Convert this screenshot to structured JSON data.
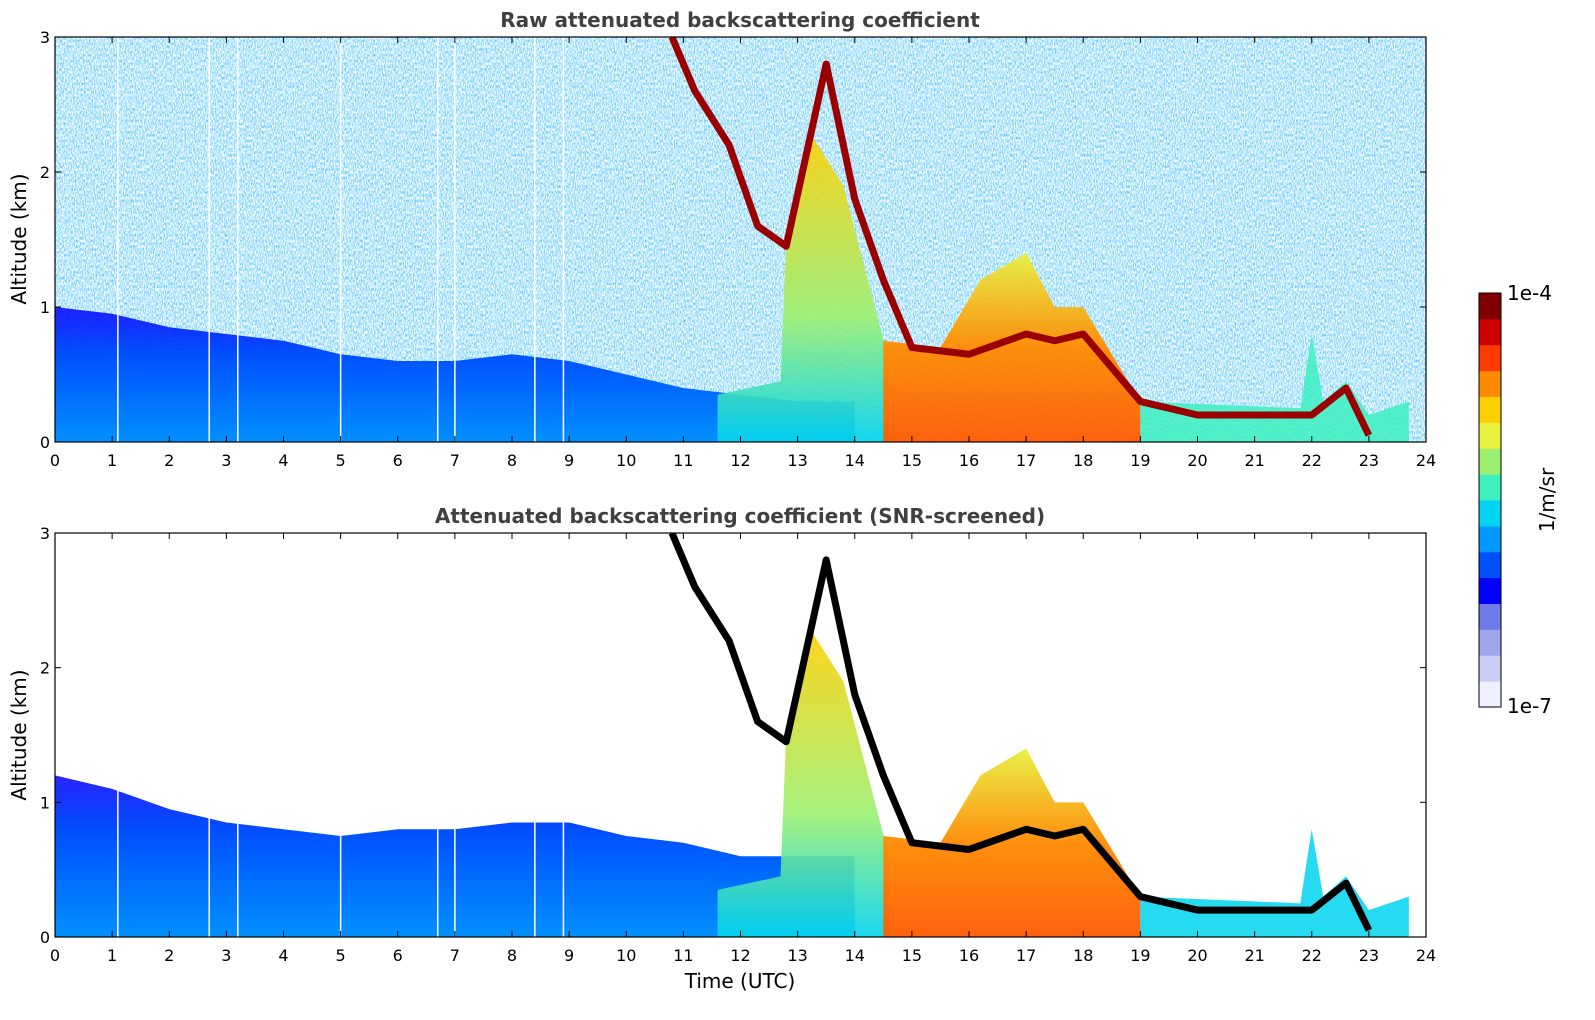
{
  "chart_data": [
    {
      "type": "heatmap",
      "title": "Raw attenuated backscattering coefficient",
      "xlabel": "",
      "ylabel": "Altitude (km)",
      "xlim": [
        0,
        24
      ],
      "ylim": [
        0,
        3
      ],
      "xticks": [
        "0",
        "1",
        "2",
        "3",
        "4",
        "5",
        "6",
        "7",
        "8",
        "9",
        "10",
        "11",
        "12",
        "13",
        "14",
        "15",
        "16",
        "17",
        "18",
        "19",
        "20",
        "21",
        "22",
        "23",
        "24"
      ],
      "yticks": [
        "0",
        "1",
        "2",
        "3"
      ],
      "screened": false,
      "features": {
        "boundary_layer_top_km": [
          [
            0,
            1.0
          ],
          [
            1,
            0.95
          ],
          [
            2,
            0.85
          ],
          [
            3,
            0.8
          ],
          [
            4,
            0.75
          ],
          [
            5,
            0.65
          ],
          [
            6,
            0.6
          ],
          [
            7,
            0.6
          ],
          [
            8,
            0.65
          ],
          [
            9,
            0.6
          ],
          [
            10,
            0.5
          ],
          [
            11,
            0.4
          ],
          [
            12,
            0.35
          ],
          [
            13,
            0.3
          ],
          [
            14,
            0.3
          ]
        ],
        "cloud_layer_km": [
          [
            10.8,
            3.0
          ],
          [
            11.2,
            2.6
          ],
          [
            11.8,
            2.2
          ],
          [
            12.3,
            1.6
          ],
          [
            12.8,
            1.45
          ],
          [
            13.5,
            2.8
          ],
          [
            14.0,
            1.8
          ],
          [
            14.5,
            1.2
          ],
          [
            15.0,
            0.7
          ],
          [
            16.0,
            0.65
          ],
          [
            17.0,
            0.8
          ],
          [
            17.5,
            0.75
          ],
          [
            18.0,
            0.8
          ],
          [
            19.0,
            0.3
          ],
          [
            20.0,
            0.2
          ],
          [
            21.0,
            0.2
          ],
          [
            22.0,
            0.2
          ],
          [
            22.6,
            0.4
          ],
          [
            23.0,
            0.05
          ]
        ]
      },
      "missing_profiles_utc": [
        1.1,
        2.7,
        3.2,
        5.0,
        6.7,
        7.0,
        8.4,
        8.9
      ]
    },
    {
      "type": "heatmap",
      "title": "Attenuated backscattering coefficient (SNR-screened)",
      "xlabel": "Time (UTC)",
      "ylabel": "Altitude (km)",
      "xlim": [
        0,
        24
      ],
      "ylim": [
        0,
        3
      ],
      "xticks": [
        "0",
        "1",
        "2",
        "3",
        "4",
        "5",
        "6",
        "7",
        "8",
        "9",
        "10",
        "11",
        "12",
        "13",
        "14",
        "15",
        "16",
        "17",
        "18",
        "19",
        "20",
        "21",
        "22",
        "23",
        "24"
      ],
      "yticks": [
        "0",
        "1",
        "2",
        "3"
      ],
      "screened": true,
      "features": {
        "boundary_layer_top_km": [
          [
            0,
            1.2
          ],
          [
            1,
            1.1
          ],
          [
            2,
            0.95
          ],
          [
            3,
            0.85
          ],
          [
            4,
            0.8
          ],
          [
            5,
            0.75
          ],
          [
            6,
            0.8
          ],
          [
            7,
            0.8
          ],
          [
            8,
            0.85
          ],
          [
            9,
            0.85
          ],
          [
            10,
            0.75
          ],
          [
            11,
            0.7
          ],
          [
            12,
            0.6
          ],
          [
            13,
            0.6
          ],
          [
            14,
            0.6
          ]
        ],
        "cloud_layer_km": [
          [
            10.8,
            3.0
          ],
          [
            11.2,
            2.6
          ],
          [
            11.8,
            2.2
          ],
          [
            12.3,
            1.6
          ],
          [
            12.8,
            1.45
          ],
          [
            13.5,
            2.8
          ],
          [
            14.0,
            1.8
          ],
          [
            14.5,
            1.2
          ],
          [
            15.0,
            0.7
          ],
          [
            16.0,
            0.65
          ],
          [
            17.0,
            0.8
          ],
          [
            17.5,
            0.75
          ],
          [
            18.0,
            0.8
          ],
          [
            19.0,
            0.3
          ],
          [
            20.0,
            0.2
          ],
          [
            21.0,
            0.2
          ],
          [
            22.0,
            0.2
          ],
          [
            22.6,
            0.4
          ],
          [
            23.0,
            0.05
          ]
        ]
      },
      "missing_profiles_utc": [
        1.1,
        2.7,
        3.2,
        5.0,
        6.7,
        7.0,
        8.4,
        8.9
      ]
    }
  ],
  "colorbar": {
    "label": "1/m/sr",
    "max_label": "1e-4",
    "min_label": "1e-7",
    "colors": [
      "#eef0ff",
      "#c9cdf5",
      "#9fa6ee",
      "#6f7bea",
      "#0000ff",
      "#0050ff",
      "#0099ff",
      "#00d4f0",
      "#3cf0c0",
      "#9cf070",
      "#e8f040",
      "#ffd000",
      "#ff8a00",
      "#ff3a00",
      "#d00000",
      "#800000"
    ]
  }
}
